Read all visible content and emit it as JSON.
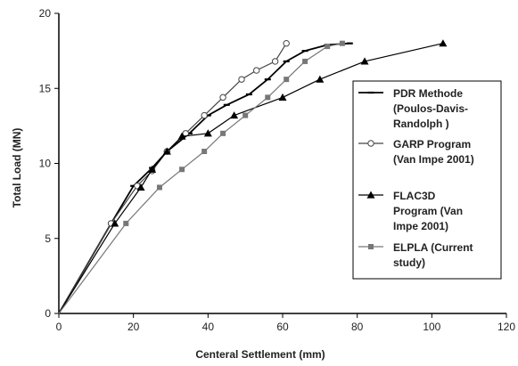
{
  "chart_data": {
    "type": "line",
    "title": "",
    "xlabel": "Centeral Settlement (mm)",
    "ylabel": "Total Load (MN)",
    "xlim": [
      0,
      120
    ],
    "ylim": [
      0,
      20
    ],
    "x_ticks": [
      "0",
      "20",
      "40",
      "60",
      "80",
      "100",
      "120"
    ],
    "y_ticks": [
      "0",
      "5",
      "10",
      "15",
      "20"
    ],
    "grid": false,
    "legend_position": "right",
    "series": [
      {
        "name": "PDR Methode (Poulos-Davis-Randolph )",
        "legend_lines": [
          "PDR Methode",
          "(Poulos-Davis-",
          "Randolph )"
        ],
        "marker": "short-dash",
        "color": "#000000",
        "x": [
          0,
          14,
          20,
          25,
          29,
          35,
          40,
          45,
          51,
          56,
          61,
          66,
          72,
          78
        ],
        "y": [
          0,
          6,
          8.5,
          9.7,
          10.8,
          12,
          13.2,
          13.9,
          14.6,
          15.6,
          16.8,
          17.5,
          17.9,
          18
        ]
      },
      {
        "name": "GARP Program (Van Impe 2001)",
        "legend_lines": [
          "GARP Program",
          "(Van Impe 2001)"
        ],
        "marker": "open-circle",
        "color": "#444444",
        "x": [
          0,
          14,
          21,
          25,
          29,
          34,
          39,
          44,
          49,
          53,
          58,
          61
        ],
        "y": [
          0,
          6,
          8.5,
          9.5,
          10.8,
          12,
          13.2,
          14.4,
          15.6,
          16.2,
          16.8,
          18
        ]
      },
      {
        "name": "FLAC3D Program (Van Impe 2001)",
        "legend_lines": [
          "FLAC3D",
          "Program (Van",
          "Impe 2001)"
        ],
        "marker": "filled-triangle",
        "color": "#000000",
        "x": [
          0,
          15,
          22,
          25,
          29,
          33,
          40,
          47,
          60,
          70,
          82,
          103
        ],
        "y": [
          0,
          6,
          8.4,
          9.6,
          10.8,
          11.8,
          12,
          13.2,
          14.4,
          15.6,
          16.8,
          18
        ]
      },
      {
        "name": "ELPLA (Current study)",
        "legend_lines": [
          "ELPLA (Current",
          "study)"
        ],
        "marker": "filled-square",
        "color": "#777777",
        "x": [
          0,
          18,
          27,
          33,
          39,
          44,
          50,
          56,
          61,
          66,
          72,
          76
        ],
        "y": [
          0,
          6,
          8.4,
          9.6,
          10.8,
          12,
          13.2,
          14.4,
          15.6,
          16.8,
          17.8,
          18
        ]
      }
    ]
  }
}
